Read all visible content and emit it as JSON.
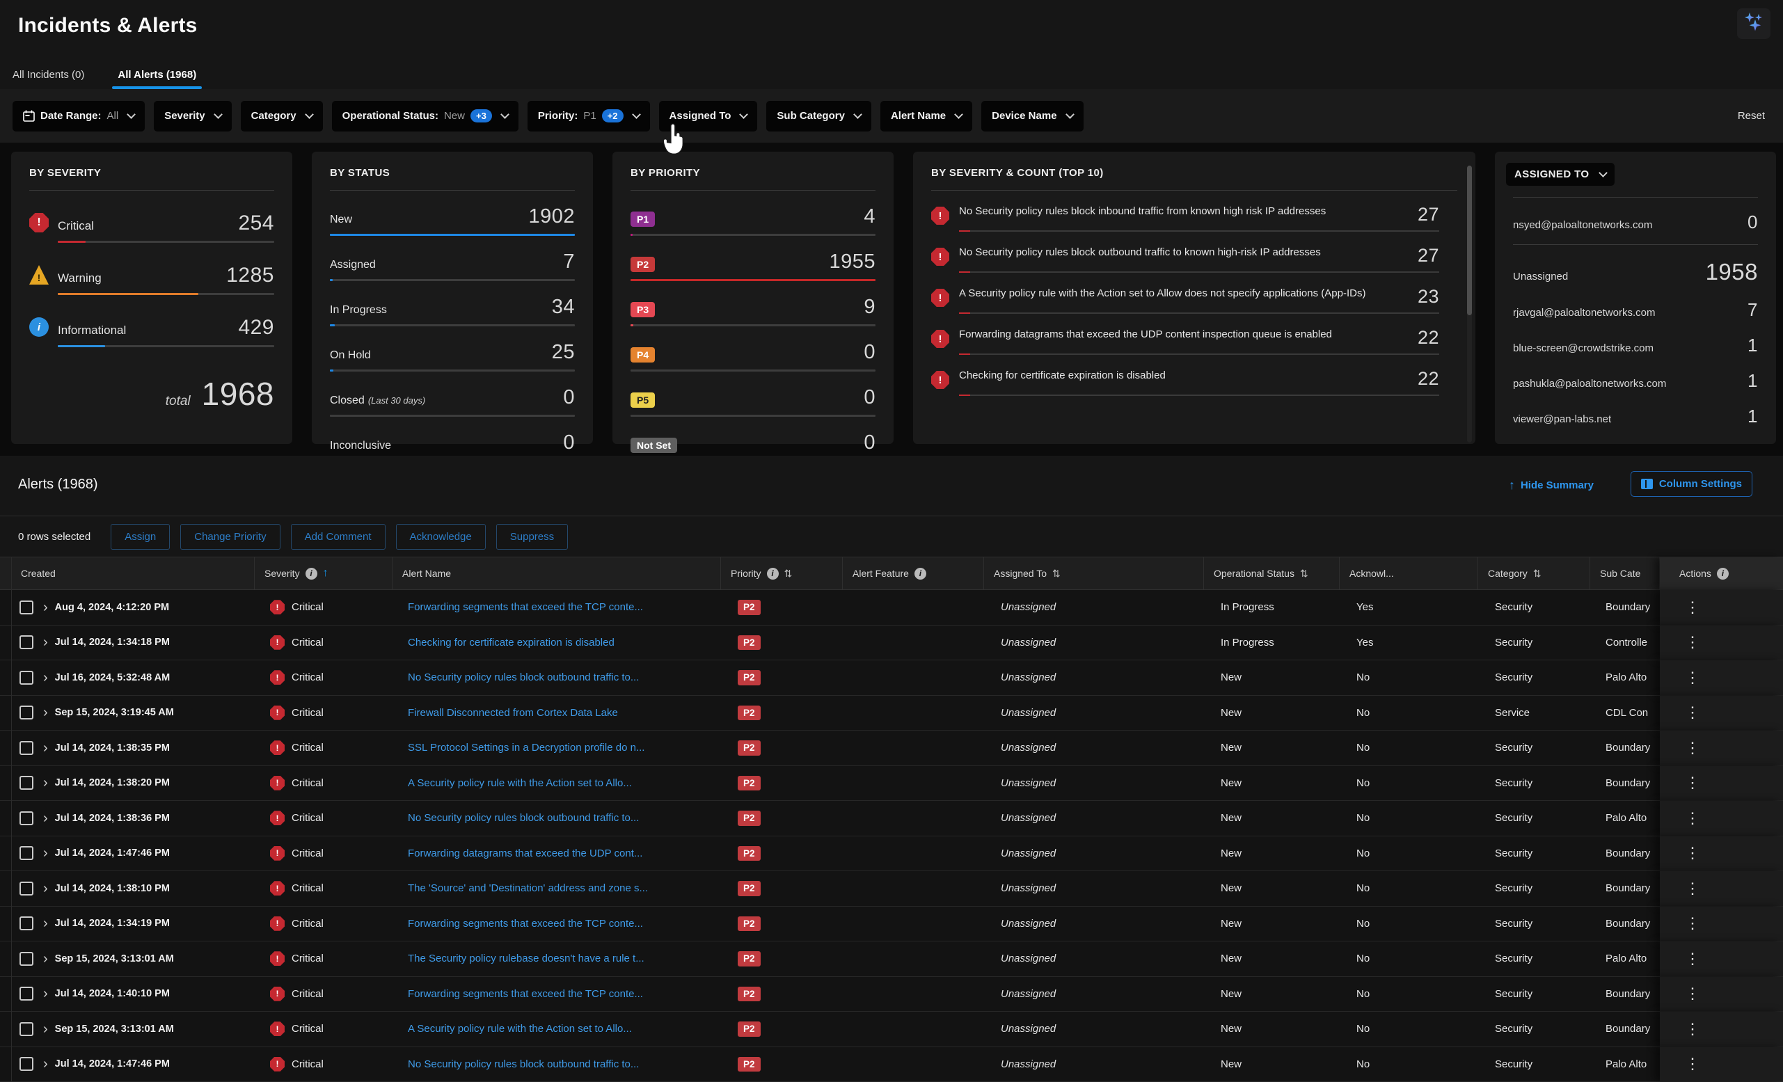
{
  "app": {
    "title": "Incidents & Alerts"
  },
  "tabs": [
    {
      "label": "All Incidents (0)",
      "active": false
    },
    {
      "label": "All Alerts (1968)",
      "active": true
    }
  ],
  "filter_bar": {
    "filters": [
      {
        "name": "date-range",
        "label": "Date Range:",
        "value": "All",
        "icon": "calendar"
      },
      {
        "name": "severity",
        "label": "Severity"
      },
      {
        "name": "category",
        "label": "Category"
      },
      {
        "name": "operational-status",
        "label": "Operational Status:",
        "value": "New",
        "badge": "+3"
      },
      {
        "name": "priority",
        "label": "Priority:",
        "value": "P1",
        "badge": "+2"
      },
      {
        "name": "assigned-to",
        "label": "Assigned To"
      },
      {
        "name": "sub-category",
        "label": "Sub Category"
      },
      {
        "name": "alert-name",
        "label": "Alert Name"
      },
      {
        "name": "device-name",
        "label": "Device Name"
      }
    ],
    "reset_label": "Reset"
  },
  "cards": {
    "by_severity": {
      "title": "BY SEVERITY",
      "rows": [
        {
          "label": "Critical",
          "value": "254",
          "icon": "critical-icon",
          "color": "#c52931",
          "pct": 13
        },
        {
          "label": "Warning",
          "value": "1285",
          "icon": "warning-icon",
          "color": "#e07b2a",
          "pct": 65
        },
        {
          "label": "Informational",
          "value": "429",
          "icon": "info-icon",
          "color": "#2b90e0",
          "pct": 22
        }
      ],
      "total_label": "total",
      "total_value": "1968"
    },
    "by_status": {
      "title": "BY STATUS",
      "bar_color": "#1e88e5",
      "rows": [
        {
          "label": "New",
          "value": "1902",
          "pct": 100
        },
        {
          "label": "Assigned",
          "value": "7",
          "pct": 1
        },
        {
          "label": "In Progress",
          "value": "34",
          "pct": 2
        },
        {
          "label": "On Hold",
          "value": "25",
          "pct": 1.5
        },
        {
          "label": "Closed",
          "sublabel": "(Last 30 days)",
          "value": "0",
          "pct": 0
        },
        {
          "label": "Inconclusive",
          "value": "0",
          "pct": 0
        }
      ]
    },
    "by_priority": {
      "title": "BY PRIORITY",
      "rows": [
        {
          "badge": "P1",
          "badge_color": "#8f2f91",
          "text_color": "#ffffff",
          "value": "4",
          "pct": 0.8,
          "bar_color": "#c2187e"
        },
        {
          "badge": "P2",
          "badge_color": "#c63939",
          "text_color": "#ffffff",
          "value": "1955",
          "pct": 100,
          "bar_color": "#c62828"
        },
        {
          "badge": "P3",
          "badge_color": "#e54853",
          "text_color": "#ffffff",
          "value": "9",
          "pct": 1,
          "bar_color": "#e54853"
        },
        {
          "badge": "P4",
          "badge_color": "#e5832f",
          "text_color": "#ffffff",
          "value": "0",
          "pct": 0,
          "bar_color": "#e5832f"
        },
        {
          "badge": "P5",
          "badge_color": "#ecd04b",
          "text_color": "#222222",
          "value": "0",
          "pct": 0,
          "bar_color": "#ecd04b"
        },
        {
          "badge": "Not Set",
          "badge_color": "#5f5f5f",
          "text_color": "#ffffff",
          "value": "0",
          "pct": 0,
          "bar_color": "#888888"
        }
      ]
    },
    "top10": {
      "title": "BY SEVERITY & COUNT (TOP 10)",
      "rows": [
        {
          "text": "No Security policy rules block inbound traffic from known high risk IP addresses",
          "value": "27"
        },
        {
          "text": "No Security policy rules block outbound traffic to known high-risk IP addresses",
          "value": "27"
        },
        {
          "text": "A Security policy rule with the Action set to Allow does not specify applications (App-IDs)",
          "value": "23"
        },
        {
          "text": "Forwarding datagrams that exceed the UDP content inspection queue is enabled",
          "value": "22"
        },
        {
          "text": "Checking for certificate expiration is disabled",
          "value": "22"
        }
      ]
    },
    "assigned_to": {
      "title": "ASSIGNED TO",
      "me": {
        "label": "nsyed@paloaltonetworks.com",
        "value": "0"
      },
      "rows": [
        {
          "label": "Unassigned",
          "value": "1958",
          "big": true
        },
        {
          "label": "rjavgal@paloaltonetworks.com",
          "value": "7"
        },
        {
          "label": "blue-screen@crowdstrike.com",
          "value": "1"
        },
        {
          "label": "pashukla@paloaltonetworks.com",
          "value": "1"
        },
        {
          "label": "viewer@pan-labs.net",
          "value": "1"
        }
      ]
    }
  },
  "alerts_panel": {
    "title": "Alerts (1968)",
    "hide_summary_label": "Hide Summary",
    "column_settings_label": "Column Settings",
    "rows_selected_label": "0 rows selected",
    "bulk_actions": [
      "Assign",
      "Change Priority",
      "Add Comment",
      "Acknowledge",
      "Suppress"
    ]
  },
  "table": {
    "columns": [
      {
        "label": "Created"
      },
      {
        "label": "Severity",
        "info": true,
        "sorted": "asc"
      },
      {
        "label": "Alert Name"
      },
      {
        "label": "Priority",
        "info": true,
        "sortable": true
      },
      {
        "label": "Alert Feature",
        "info": true
      },
      {
        "label": "Assigned To",
        "sortable": true
      },
      {
        "label": "Operational Status",
        "sortable": true
      },
      {
        "label": "Acknowl..."
      },
      {
        "label": "Category",
        "sortable": true
      },
      {
        "label": "Sub Cate"
      },
      {
        "label": "Actions",
        "info": true,
        "sticky": true
      }
    ],
    "rows": [
      {
        "created": "Aug 4, 2024, 4:12:20 PM",
        "severity": "Critical",
        "name": "Forwarding segments that exceed the TCP conte...",
        "priority": "P2",
        "feature": "",
        "assigned": "Unassigned",
        "status": "In Progress",
        "ack": "Yes",
        "category": "Security",
        "subcat": "Boundary"
      },
      {
        "created": "Jul 14, 2024, 1:34:18 PM",
        "severity": "Critical",
        "name": "Checking for certificate expiration is disabled",
        "priority": "P2",
        "feature": "",
        "assigned": "Unassigned",
        "status": "In Progress",
        "ack": "Yes",
        "category": "Security",
        "subcat": "Controlle"
      },
      {
        "created": "Jul 16, 2024, 5:32:48 AM",
        "severity": "Critical",
        "name": "No Security policy rules block outbound traffic to...",
        "priority": "P2",
        "feature": "",
        "assigned": "Unassigned",
        "status": "New",
        "ack": "No",
        "category": "Security",
        "subcat": "Palo Alto"
      },
      {
        "created": "Sep 15, 2024, 3:19:45 AM",
        "severity": "Critical",
        "name": "Firewall Disconnected from Cortex Data Lake",
        "priority": "P2",
        "feature": "",
        "assigned": "Unassigned",
        "status": "New",
        "ack": "No",
        "category": "Service",
        "subcat": "CDL Con"
      },
      {
        "created": "Jul 14, 2024, 1:38:35 PM",
        "severity": "Critical",
        "name": "SSL Protocol Settings in a Decryption profile do n...",
        "priority": "P2",
        "feature": "",
        "assigned": "Unassigned",
        "status": "New",
        "ack": "No",
        "category": "Security",
        "subcat": "Boundary"
      },
      {
        "created": "Jul 14, 2024, 1:38:20 PM",
        "severity": "Critical",
        "name": "A Security policy rule with the Action set to Allo...",
        "priority": "P2",
        "feature": "",
        "assigned": "Unassigned",
        "status": "New",
        "ack": "No",
        "category": "Security",
        "subcat": "Boundary"
      },
      {
        "created": "Jul 14, 2024, 1:38:36 PM",
        "severity": "Critical",
        "name": "No Security policy rules block outbound traffic to...",
        "priority": "P2",
        "feature": "",
        "assigned": "Unassigned",
        "status": "New",
        "ack": "No",
        "category": "Security",
        "subcat": "Palo Alto"
      },
      {
        "created": "Jul 14, 2024, 1:47:46 PM",
        "severity": "Critical",
        "name": "Forwarding datagrams that exceed the UDP cont...",
        "priority": "P2",
        "feature": "",
        "assigned": "Unassigned",
        "status": "New",
        "ack": "No",
        "category": "Security",
        "subcat": "Boundary"
      },
      {
        "created": "Jul 14, 2024, 1:38:10 PM",
        "severity": "Critical",
        "name": "The 'Source' and 'Destination' address and zone s...",
        "priority": "P2",
        "feature": "",
        "assigned": "Unassigned",
        "status": "New",
        "ack": "No",
        "category": "Security",
        "subcat": "Boundary"
      },
      {
        "created": "Jul 14, 2024, 1:34:19 PM",
        "severity": "Critical",
        "name": "Forwarding segments that exceed the TCP conte...",
        "priority": "P2",
        "feature": "",
        "assigned": "Unassigned",
        "status": "New",
        "ack": "No",
        "category": "Security",
        "subcat": "Boundary"
      },
      {
        "created": "Sep 15, 2024, 3:13:01 AM",
        "severity": "Critical",
        "name": "The Security policy rulebase doesn't have a rule t...",
        "priority": "P2",
        "feature": "",
        "assigned": "Unassigned",
        "status": "New",
        "ack": "No",
        "category": "Security",
        "subcat": "Palo Alto"
      },
      {
        "created": "Jul 14, 2024, 1:40:10 PM",
        "severity": "Critical",
        "name": "Forwarding segments that exceed the TCP conte...",
        "priority": "P2",
        "feature": "",
        "assigned": "Unassigned",
        "status": "New",
        "ack": "No",
        "category": "Security",
        "subcat": "Boundary"
      },
      {
        "created": "Sep 15, 2024, 3:13:01 AM",
        "severity": "Critical",
        "name": "A Security policy rule with the Action set to Allo...",
        "priority": "P2",
        "feature": "",
        "assigned": "Unassigned",
        "status": "New",
        "ack": "No",
        "category": "Security",
        "subcat": "Boundary"
      },
      {
        "created": "Jul 14, 2024, 1:47:46 PM",
        "severity": "Critical",
        "name": "No Security policy rules block outbound traffic to...",
        "priority": "P2",
        "feature": "",
        "assigned": "Unassigned",
        "status": "New",
        "ack": "No",
        "category": "Security",
        "subcat": "Palo Alto"
      }
    ]
  },
  "colors": {
    "accent_blue": "#1793e8",
    "link_blue": "#3f9be8",
    "badge_blue": "#1a73d9",
    "critical_red": "#c52931",
    "p2_red": "#c13b3f"
  }
}
